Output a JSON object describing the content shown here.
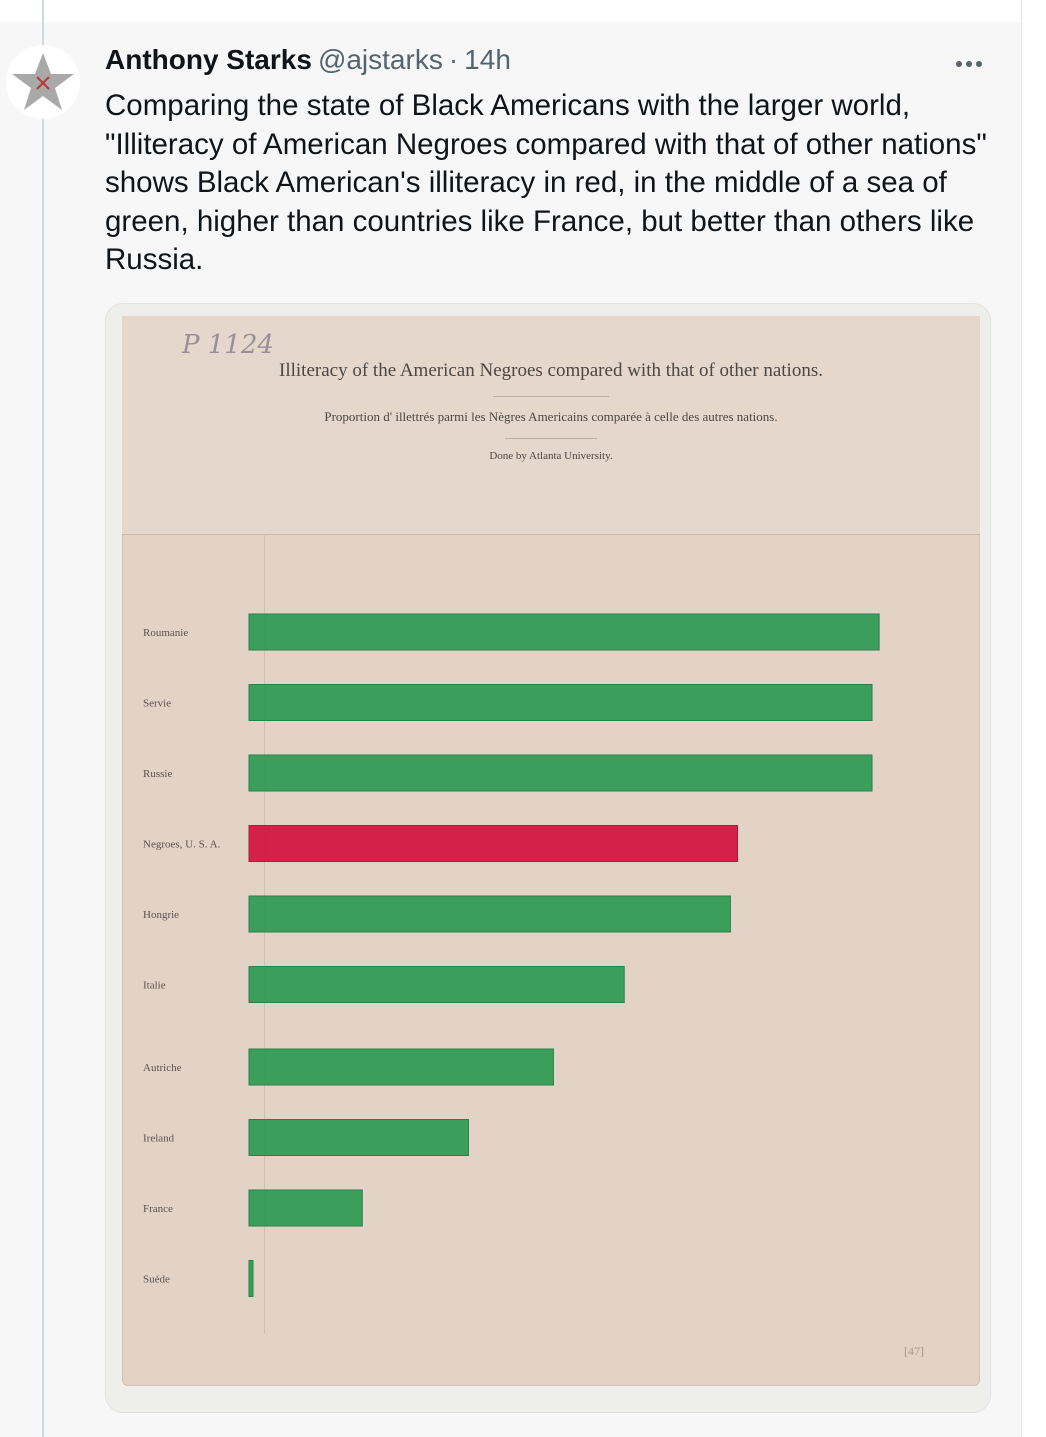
{
  "tweet": {
    "author_name": "Anthony Starks",
    "handle": "@ajstarks",
    "separator": "·",
    "time": "14h",
    "text": "Comparing the state of Black Americans with the larger world, \"Illiteracy of American Negroes compared with that of other nations\" shows Black American's illiteracy in red, in the middle of a sea of green, higher than countries like France, but better than others like Russia.",
    "avatar_icon": "star-icon",
    "more_icon": "more-options-icon"
  },
  "poster": {
    "pencil_note": "P 1124",
    "page_number": "[47]"
  },
  "colors": {
    "green_bar": "#2e9a52",
    "red_bar": "#d2123f",
    "paper": "#e3d2c6"
  },
  "chart_data": {
    "type": "bar",
    "orientation": "horizontal",
    "title": "Illiteracy of the American Negroes compared with that of other nations.",
    "subtitle": "Proportion d' illettrés parmi les Nègres Americains comparée à celle des autres nations.",
    "credit": "Done by Atlanta University.",
    "categories": [
      "Roumanie",
      "Servie",
      "Russie",
      "Negroes, U. S. A.",
      "Hongrie",
      "Italie",
      "Autriche",
      "Ireland",
      "France",
      "Suéde"
    ],
    "values": [
      89,
      88,
      88,
      69,
      68,
      53,
      43,
      31,
      16,
      0.5
    ],
    "highlight": "Negroes, U. S. A.",
    "xlim": [
      0,
      100
    ],
    "grid": false
  }
}
